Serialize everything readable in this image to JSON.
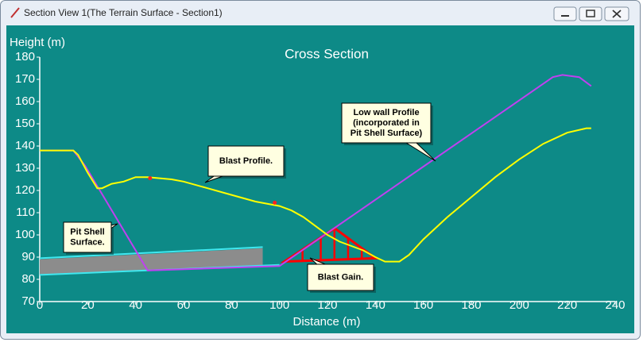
{
  "window": {
    "title": "Section View 1(The Terrain Surface - Section1)"
  },
  "chart_data": {
    "type": "line",
    "title": "Cross Section",
    "xlabel": "Distance (m)",
    "ylabel": "Height (m)",
    "xlim": [
      0,
      240
    ],
    "ylim": [
      70,
      180
    ],
    "xticks": [
      0,
      20,
      40,
      60,
      80,
      100,
      120,
      140,
      160,
      180,
      200,
      220,
      240
    ],
    "yticks": [
      70,
      80,
      90,
      100,
      110,
      120,
      130,
      140,
      150,
      160,
      170,
      180
    ],
    "polygons": [
      {
        "color": "#8c8c8c",
        "x": [
          0,
          93,
          93,
          0
        ],
        "values": [
          89,
          94,
          86,
          82
        ]
      },
      {
        "color": "#ff0000",
        "x": [
          102,
          123,
          140
        ],
        "values": [
          88,
          103,
          89.5
        ]
      }
    ],
    "series": [
      {
        "color": "#40e8f0",
        "x": [
          0,
          93
        ],
        "values": [
          89.5,
          94.5
        ]
      },
      {
        "color": "#40e8f0",
        "x": [
          0,
          100
        ],
        "values": [
          82,
          86.5
        ]
      },
      {
        "color": "#c040f0",
        "x": [
          0,
          14,
          19,
          45,
          100,
          214,
          218,
          225,
          230
        ],
        "values": [
          138,
          138,
          131,
          84,
          86,
          171,
          172,
          171,
          167
        ]
      },
      {
        "color": "#ffff00",
        "x": [
          0,
          14,
          16,
          20,
          24,
          26,
          30,
          35,
          40,
          45,
          55,
          60,
          70,
          80,
          90,
          100,
          105,
          110,
          115,
          120,
          125,
          130,
          135,
          140,
          144,
          150,
          154,
          160,
          170,
          180,
          190,
          200,
          210,
          220,
          228,
          230
        ],
        "values": [
          138,
          138,
          136,
          128,
          121,
          121,
          123,
          124,
          126,
          126,
          125,
          124,
          121,
          118,
          115,
          113,
          111,
          108,
          104,
          100,
          97,
          95,
          93,
          90,
          88,
          88,
          91,
          98,
          108,
          117,
          126,
          134,
          141,
          146,
          148,
          148
        ]
      }
    ],
    "markers": {
      "color": "#ff2020",
      "x": [
        46,
        98
      ],
      "values": [
        125.5,
        114.5
      ]
    },
    "annotations": [
      [
        "Blast Profile."
      ],
      [
        "Low wall Profile",
        "(incorporated in",
        "Pit Shell Surface)"
      ],
      [
        "Pit Shell",
        "Surface."
      ],
      [
        "Blast Gain."
      ]
    ]
  }
}
